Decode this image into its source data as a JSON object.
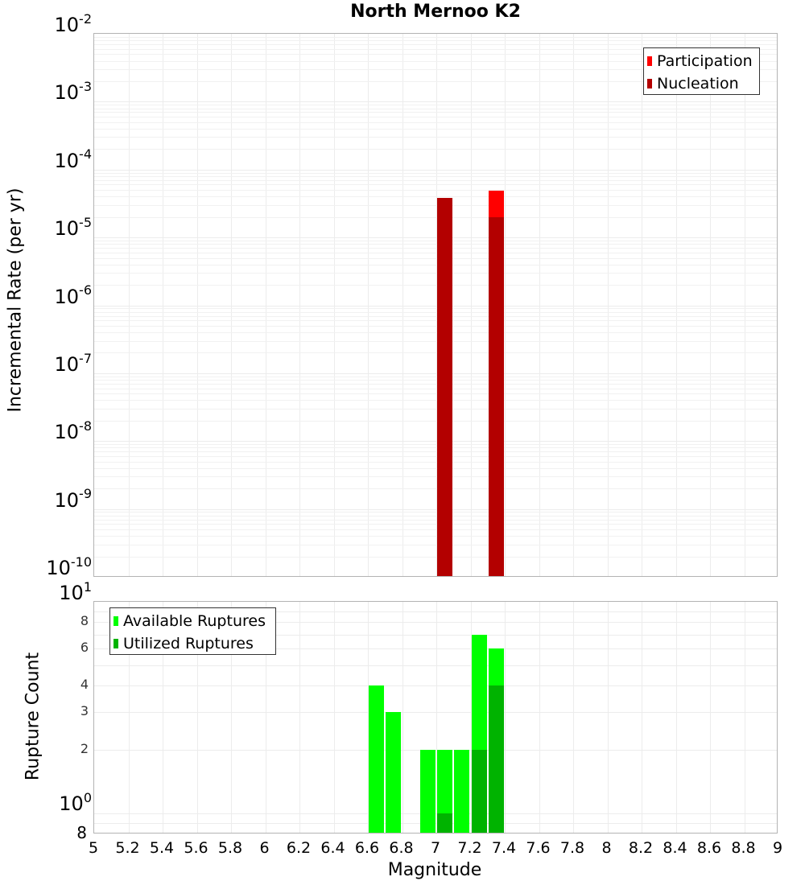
{
  "chart_data": [
    {
      "type": "bar",
      "title": "North Mernoo K2",
      "xlabel": "Magnitude",
      "ylabel": "Incremental Rate (per yr)",
      "yscale": "log",
      "ylim": [
        1e-10,
        0.01
      ],
      "xlim": [
        5,
        9
      ],
      "grid": true,
      "legend_position": "top-right",
      "bin_width": 0.1,
      "series": [
        {
          "name": "Participation",
          "color": "#ff0000",
          "x": [
            7.05,
            7.35
          ],
          "values": [
            3.8e-05,
            4.9e-05
          ]
        },
        {
          "name": "Nucleation",
          "color": "#b30000",
          "x": [
            7.05,
            7.35
          ],
          "values": [
            3.8e-05,
            2e-05
          ]
        }
      ],
      "yticks": [
        {
          "base": "10",
          "exp": "-2"
        },
        {
          "base": "10",
          "exp": "-3"
        },
        {
          "base": "10",
          "exp": "-4"
        },
        {
          "base": "10",
          "exp": "-5"
        },
        {
          "base": "10",
          "exp": "-6"
        },
        {
          "base": "10",
          "exp": "-7"
        },
        {
          "base": "10",
          "exp": "-8"
        },
        {
          "base": "10",
          "exp": "-9"
        },
        {
          "base": "10",
          "exp": "-10"
        }
      ]
    },
    {
      "type": "bar",
      "title": "",
      "xlabel": "Magnitude",
      "ylabel": "Rupture Count",
      "yscale": "log",
      "ylim": [
        0.8,
        10
      ],
      "xlim": [
        5,
        9
      ],
      "grid": true,
      "legend_position": "top-left",
      "bin_width": 0.1,
      "series": [
        {
          "name": "Available Ruptures",
          "color": "#00ff00",
          "x": [
            6.65,
            6.75,
            6.95,
            7.05,
            7.15,
            7.25,
            7.35
          ],
          "values": [
            4,
            3,
            2,
            2,
            2,
            7,
            6
          ]
        },
        {
          "name": "Utilized Ruptures",
          "color": "#00b300",
          "x": [
            7.05,
            7.25,
            7.35
          ],
          "values": [
            1,
            2,
            4
          ]
        }
      ],
      "yticks_major": [
        {
          "base": "10",
          "exp": "1"
        },
        {
          "base": "10",
          "exp": "0"
        }
      ],
      "yticks_minor": [
        "8",
        "6",
        "4",
        "3",
        "2",
        "8"
      ],
      "xticks": [
        "5",
        "5.2",
        "5.4",
        "5.6",
        "5.8",
        "6",
        "6.2",
        "6.4",
        "6.6",
        "6.8",
        "7",
        "7.2",
        "7.4",
        "7.6",
        "7.8",
        "8",
        "8.2",
        "8.4",
        "8.6",
        "8.8",
        "9"
      ]
    }
  ]
}
